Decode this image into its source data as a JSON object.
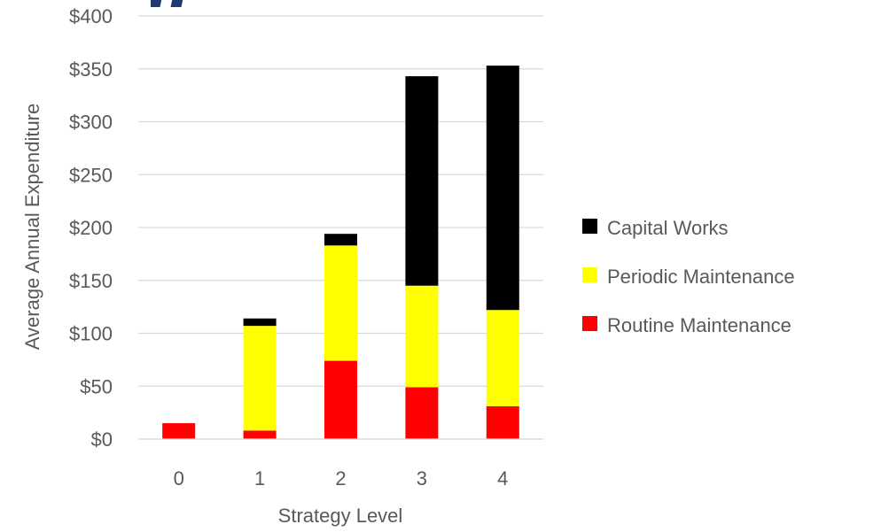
{
  "chart_data": {
    "type": "bar",
    "stacked": true,
    "categories": [
      "0",
      "1",
      "2",
      "3",
      "4"
    ],
    "series": [
      {
        "name": "Routine Maintenance",
        "color": "#ff0000",
        "values": [
          15,
          8,
          74,
          49,
          31
        ]
      },
      {
        "name": "Periodic Maintenance",
        "color": "#ffff00",
        "values": [
          0,
          99,
          109,
          96,
          91
        ]
      },
      {
        "name": "Capital Works",
        "color": "#000000",
        "values": [
          0,
          7,
          11,
          198,
          231
        ]
      }
    ],
    "title": "",
    "xlabel": "Strategy Level",
    "ylabel": "Average Annual Expenditure",
    "ylim": [
      0,
      400
    ],
    "yticks": [
      "$0",
      "$50",
      "$100",
      "$150",
      "$200",
      "$250",
      "$300",
      "$350",
      "$400"
    ],
    "grid": true,
    "legend": {
      "placement": "right",
      "entries": [
        "Capital Works",
        "Periodic Maintenance",
        "Routine Maintenance"
      ]
    }
  }
}
